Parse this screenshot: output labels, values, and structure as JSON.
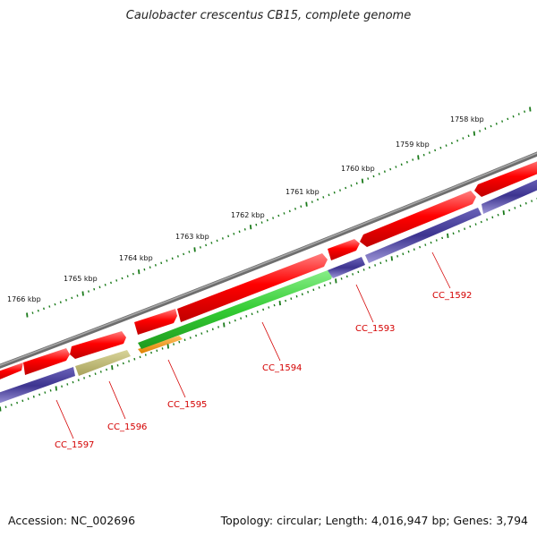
{
  "header": {
    "title": "Caulobacter crescentus CB15, complete genome"
  },
  "footer": {
    "accession": "Accession: NC_002696",
    "summary": "Topology: circular; Length: 4,016,947 bp; Genes: 3,794"
  },
  "ruler": {
    "labels": [
      "1758 kbp",
      "1759 kbp",
      "1760 kbp",
      "1761 kbp",
      "1762 kbp",
      "1763 kbp",
      "1764 kbp",
      "1765 kbp",
      "1766 kbp"
    ]
  },
  "genes": [
    "CC_1592",
    "CC_1593",
    "CC_1594",
    "CC_1595",
    "CC_1596",
    "CC_1597"
  ],
  "colors": {
    "backbone": "#7a7a7a",
    "forward_gene": "#ff0000",
    "reverse_gene": "#3d3490",
    "gene_green": "#33cc33",
    "gene_orange": "#ff9900",
    "gene_khaki": "#bdb76b",
    "ruler_tick": "#1a7a1a",
    "gene_label": "#d40000"
  }
}
